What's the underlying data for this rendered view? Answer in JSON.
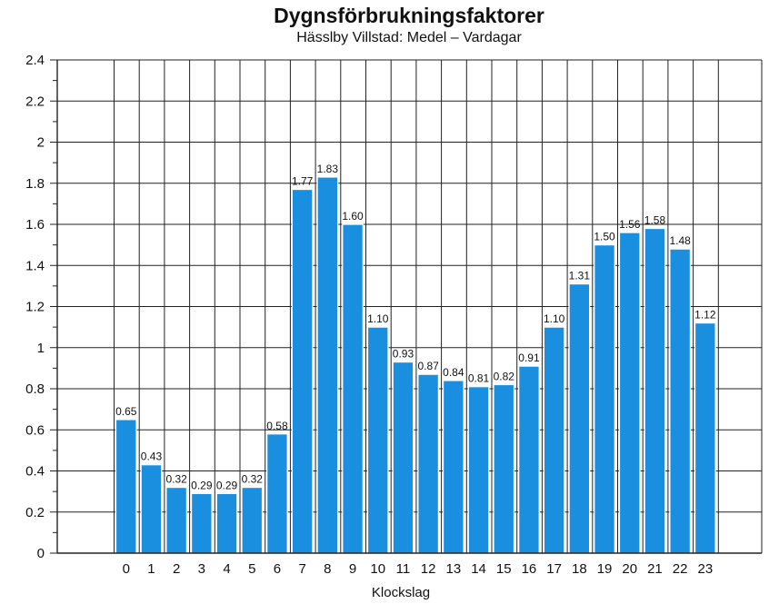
{
  "chart_data": {
    "type": "bar",
    "title": "Dygnsförbrukningsfaktorer",
    "subtitle": "Hässlby Villstad: Medel – Vardagar",
    "xlabel": "Klockslag",
    "ylabel": "",
    "ylim": [
      0,
      2.4
    ],
    "yticks": [
      "0",
      "0.2",
      "0.4",
      "0.6",
      "0.8",
      "1",
      "1.2",
      "1.4",
      "1.6",
      "1.8",
      "2",
      "2.2",
      "2.4"
    ],
    "categories": [
      "0",
      "1",
      "2",
      "3",
      "4",
      "5",
      "6",
      "7",
      "8",
      "9",
      "10",
      "11",
      "12",
      "13",
      "14",
      "15",
      "16",
      "17",
      "18",
      "19",
      "20",
      "21",
      "22",
      "23"
    ],
    "values": [
      0.65,
      0.43,
      0.32,
      0.29,
      0.29,
      0.32,
      0.58,
      1.77,
      1.83,
      1.6,
      1.1,
      0.93,
      0.87,
      0.84,
      0.81,
      0.82,
      0.91,
      1.1,
      1.31,
      1.5,
      1.56,
      1.58,
      1.48,
      1.12
    ],
    "data_labels": [
      "0.65",
      "0.43",
      "0.32",
      "0.29",
      "0.29",
      "0.32",
      "0.58",
      "1.77",
      "1.83",
      "1.60",
      "1.10",
      "0.93",
      "0.87",
      "0.84",
      "0.81",
      "0.82",
      "0.91",
      "1.10",
      "1.31",
      "1.50",
      "1.56",
      "1.58",
      "1.48",
      "1.12"
    ],
    "bar_color": "#1a8fe0",
    "grid": true
  }
}
